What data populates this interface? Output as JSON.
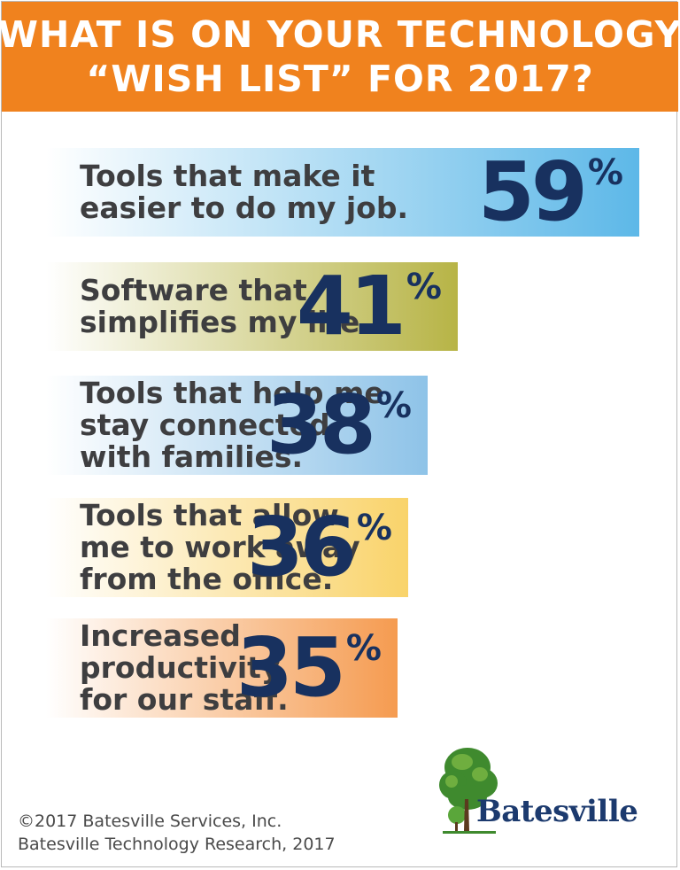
{
  "header": {
    "line1": "WHAT IS ON YOUR TECHNOLOGY",
    "line2": "“WISH LIST” FOR 2017?"
  },
  "chart_data": {
    "type": "bar",
    "categories": [
      "Tools that make it\neasier to do my job.",
      "Software that\nsimplifies my life.",
      "Tools that help me\nstay connected\nwith families.",
      "Tools that allow\nme to work away\nfrom the office.",
      "Increased\nproductivity\nfor our staff."
    ],
    "values": [
      59,
      41,
      38,
      36,
      35
    ],
    "value_labels": [
      "59",
      "41",
      "38",
      "36",
      "35"
    ],
    "unit": "%",
    "bar_colors": [
      "#5db8e8",
      "#b7b446",
      "#8ec3e8",
      "#f9d36a",
      "#f59b50"
    ]
  },
  "footer": {
    "copyright": "©2017 Batesville Services, Inc.",
    "source": "Batesville Technology Research, 2017"
  },
  "logo": {
    "text": "Batesville",
    "icon": "tree-icon"
  }
}
